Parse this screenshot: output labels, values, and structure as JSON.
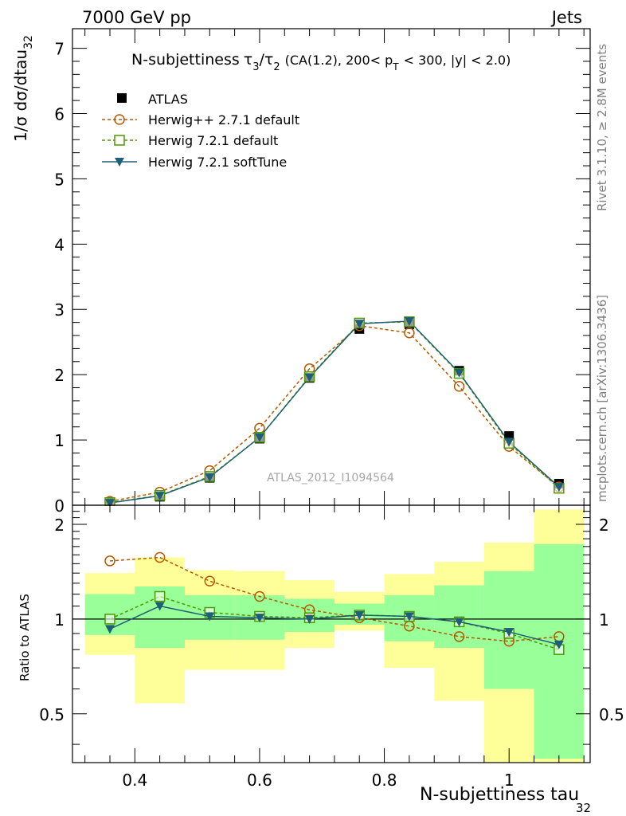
{
  "header": {
    "left": "7000 GeV pp",
    "right": "Jets"
  },
  "side": {
    "rivet": "Rivet 3.1.10, ≥ 2.8M events",
    "mcplots": "mcplots.cern.ch [arXiv:1306.3436]"
  },
  "watermark": "ATLAS_2012_I1094564",
  "title_parts": {
    "main": "N-subjettiness",
    "tau": "τ",
    "sub3": "3",
    "slash": "/",
    "sub2": "2",
    "cut1": "(CA(1.2), 200< p",
    "subT": "T",
    "cut2": "< 300, |y| < 2.0)"
  },
  "axes": {
    "main_ylabel": "1/σ dσ/dtau",
    "main_ylabel_sub": "32",
    "ratio_ylabel": "Ratio to ATLAS",
    "xlabel": "N-subjettiness tau",
    "xlabel_sub": "32"
  },
  "colors": {
    "atlas": "#000000",
    "herwigpp": "#b35900",
    "herwig721": "#4d9900",
    "softtune": "#1f5f75",
    "band_yellow": "#ffff99",
    "band_green": "#99ff99"
  },
  "chart_data": [
    {
      "type": "line",
      "panel": "main",
      "x_bins": [
        [
          0.32,
          0.4
        ],
        [
          0.4,
          0.48
        ],
        [
          0.48,
          0.56
        ],
        [
          0.56,
          0.64
        ],
        [
          0.64,
          0.72
        ],
        [
          0.72,
          0.8
        ],
        [
          0.8,
          0.88
        ],
        [
          0.88,
          0.96
        ],
        [
          0.96,
          1.04
        ],
        [
          1.04,
          1.12
        ]
      ],
      "x": [
        0.36,
        0.44,
        0.52,
        0.6,
        0.68,
        0.76,
        0.84,
        0.92,
        1.0,
        1.08
      ],
      "xlim": [
        0.3,
        1.13
      ],
      "ylim": [
        0,
        7.3
      ],
      "yticks": [
        0,
        1,
        2,
        3,
        4,
        5,
        6,
        7
      ],
      "series": [
        {
          "name": "ATLAS",
          "marker": "square-filled",
          "values": [
            0.04,
            0.13,
            0.42,
            1.02,
            1.95,
            2.7,
            2.77,
            2.06,
            1.06,
            0.33
          ]
        },
        {
          "name": "Herwig++ 2.7.1 default",
          "marker": "circle-open",
          "style": "dashed",
          "values": [
            0.06,
            0.2,
            0.53,
            1.18,
            2.09,
            2.75,
            2.64,
            1.82,
            0.9,
            0.28
          ]
        },
        {
          "name": "Herwig 7.2.1 default",
          "marker": "square-open",
          "style": "dashed",
          "values": [
            0.04,
            0.15,
            0.44,
            1.04,
            1.97,
            2.79,
            2.81,
            2.02,
            0.95,
            0.26
          ]
        },
        {
          "name": "Herwig 7.2.1 softTune",
          "marker": "triangle-down-filled",
          "style": "solid",
          "values": [
            0.035,
            0.145,
            0.43,
            1.04,
            1.96,
            2.78,
            2.82,
            2.03,
            0.97,
            0.28
          ]
        }
      ]
    },
    {
      "type": "line",
      "panel": "ratio",
      "ylabel": "Ratio to ATLAS",
      "xlabel": "N-subjettiness tau32",
      "xlim": [
        0.3,
        1.13
      ],
      "ylim": [
        0.35,
        2.3
      ],
      "yticks": [
        0.5,
        1,
        2
      ],
      "xticks": [
        0.4,
        0.6,
        0.8,
        1.0
      ],
      "xtick_labels": [
        "0.4",
        "0.6",
        "0.8",
        "1"
      ],
      "x": [
        0.36,
        0.44,
        0.52,
        0.6,
        0.68,
        0.76,
        0.84,
        0.92,
        1.0,
        1.08
      ],
      "band_yellow": [
        [
          0.77,
          1.4
        ],
        [
          0.54,
          1.57
        ],
        [
          0.69,
          1.43
        ],
        [
          0.69,
          1.42
        ],
        [
          0.81,
          1.33
        ],
        [
          0.92,
          1.22
        ],
        [
          0.7,
          1.39
        ],
        [
          0.55,
          1.52
        ],
        [
          0.35,
          1.75
        ],
        [
          0.35,
          2.23
        ]
      ],
      "band_green": [
        [
          0.89,
          1.2
        ],
        [
          0.81,
          1.27
        ],
        [
          0.86,
          1.19
        ],
        [
          0.86,
          1.19
        ],
        [
          0.91,
          1.16
        ],
        [
          0.96,
          1.12
        ],
        [
          0.85,
          1.19
        ],
        [
          0.81,
          1.28
        ],
        [
          0.6,
          1.42
        ],
        [
          0.36,
          1.73
        ]
      ],
      "series": [
        {
          "name": "Herwig++ 2.7.1 default",
          "values": [
            1.53,
            1.57,
            1.32,
            1.18,
            1.07,
            1.01,
            0.95,
            0.88,
            0.85,
            0.88
          ]
        },
        {
          "name": "Herwig 7.2.1 default",
          "values": [
            1.0,
            1.18,
            1.05,
            1.02,
            1.01,
            1.03,
            1.02,
            0.98,
            0.9,
            0.8
          ]
        },
        {
          "name": "Herwig 7.2.1 softTune",
          "values": [
            0.93,
            1.1,
            1.02,
            1.01,
            1.0,
            1.03,
            1.02,
            0.98,
            0.91,
            0.83
          ]
        }
      ]
    }
  ]
}
